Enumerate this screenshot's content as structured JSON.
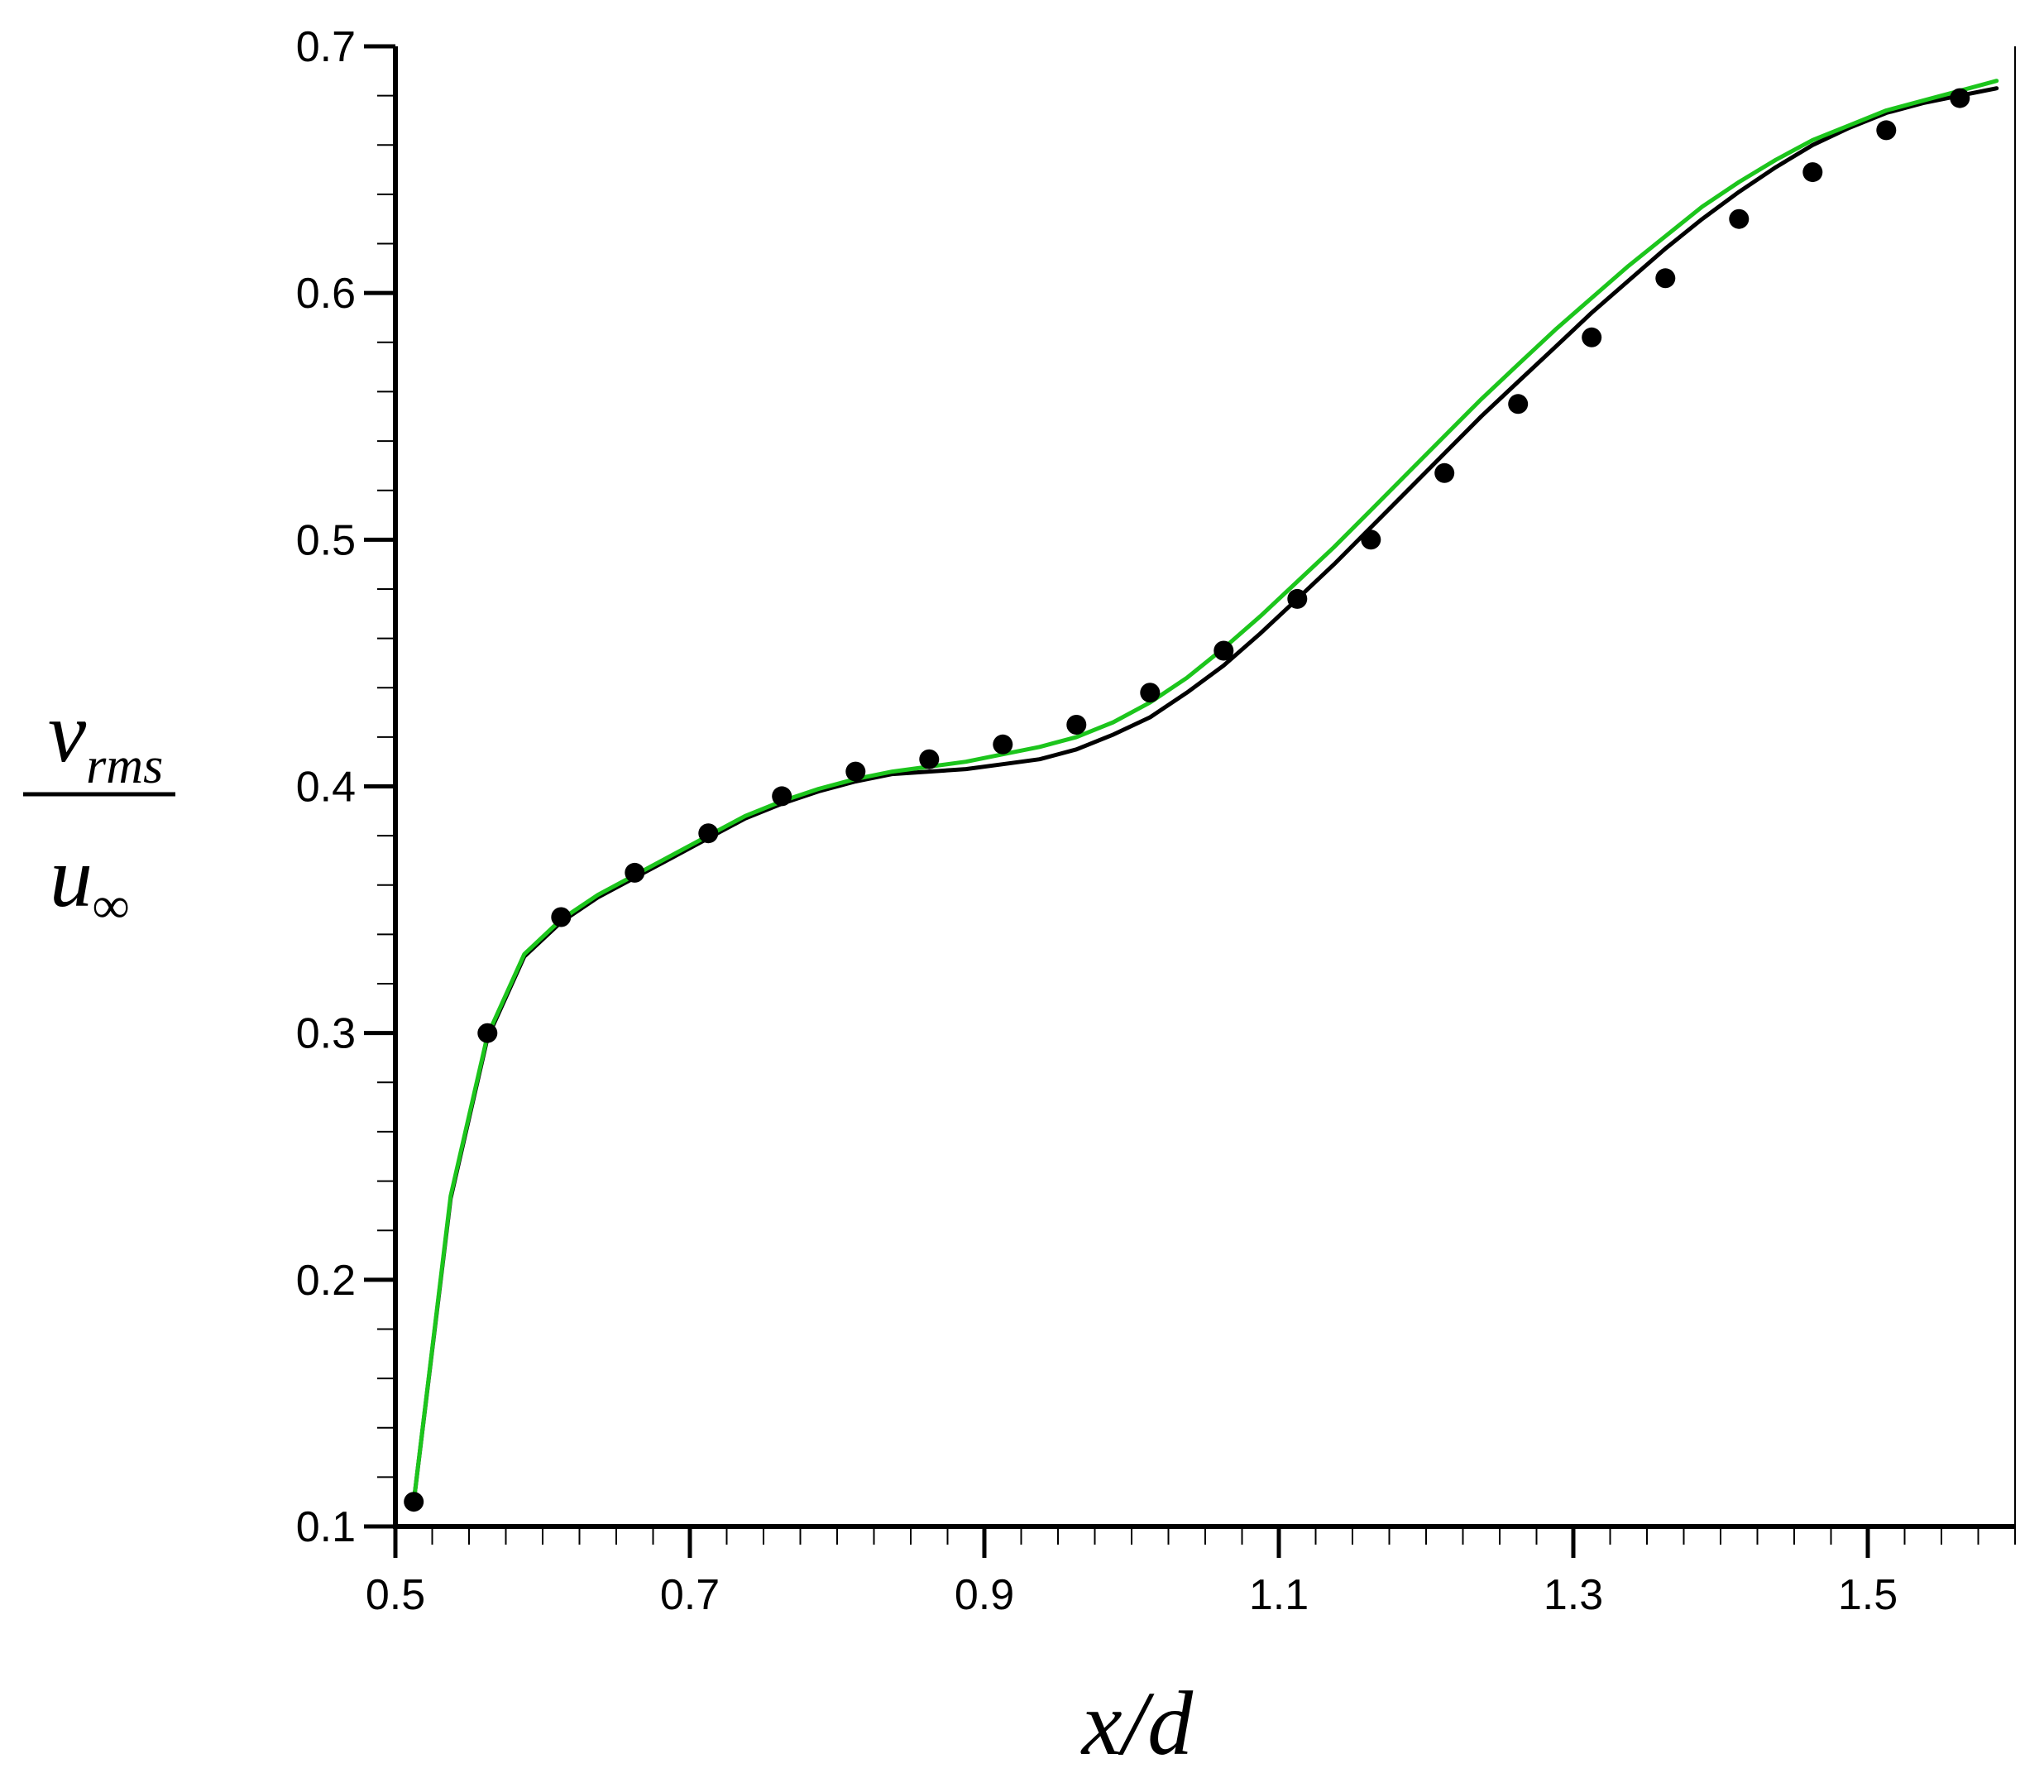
{
  "chart_data": {
    "type": "line",
    "title": "",
    "xlabel": "x/d",
    "ylabel": {
      "numerator": "v",
      "numerator_sub": "rms",
      "denominator": "u",
      "denominator_sub": "∞"
    },
    "xlim": [
      0.5,
      1.6
    ],
    "ylim": [
      0.1,
      0.7
    ],
    "xticks": [
      0.5,
      0.7,
      0.9,
      1.1,
      1.3,
      1.5
    ],
    "xtick_labels": [
      "0.5",
      "0.7",
      "0.9",
      "1.1",
      "1.3",
      "1.5"
    ],
    "yticks": [
      0.1,
      0.2,
      0.3,
      0.4,
      0.5,
      0.6,
      0.7
    ],
    "ytick_labels": [
      "0.1",
      "0.2",
      "0.3",
      "0.4",
      "0.5",
      "0.6",
      "0.7"
    ],
    "x_minor_step": 0.025,
    "y_minor_step": 0.02,
    "grid": false,
    "legend": "none",
    "series": [
      {
        "style": "line",
        "color": "#000000",
        "x": [
          0.5125,
          0.5375,
          0.5625,
          0.5875,
          0.6125,
          0.6375,
          0.6625,
          0.6875,
          0.7125,
          0.7375,
          0.7625,
          0.7875,
          0.8125,
          0.8375,
          0.8625,
          0.8875,
          0.9125,
          0.9375,
          0.9625,
          0.9875,
          1.0125,
          1.0375,
          1.0625,
          1.0875,
          1.1125,
          1.1375,
          1.1625,
          1.1875,
          1.2125,
          1.2375,
          1.2625,
          1.2875,
          1.3125,
          1.3375,
          1.3625,
          1.3875,
          1.4125,
          1.4375,
          1.4625,
          1.4875,
          1.5125,
          1.5375,
          1.5625,
          1.5875
        ],
        "y": [
          0.11,
          0.233,
          0.298,
          0.331,
          0.345,
          0.355,
          0.363,
          0.371,
          0.379,
          0.387,
          0.393,
          0.398,
          0.402,
          0.405,
          0.406,
          0.407,
          0.409,
          0.411,
          0.415,
          0.421,
          0.428,
          0.438,
          0.449,
          0.462,
          0.476,
          0.49,
          0.505,
          0.52,
          0.535,
          0.55,
          0.564,
          0.578,
          0.592,
          0.605,
          0.618,
          0.63,
          0.641,
          0.651,
          0.66,
          0.667,
          0.673,
          0.677,
          0.68,
          0.683
        ]
      },
      {
        "style": "line",
        "color": "#1cc51c",
        "x": [
          0.5125,
          0.5375,
          0.5625,
          0.5875,
          0.6125,
          0.6375,
          0.6625,
          0.6875,
          0.7125,
          0.7375,
          0.7625,
          0.7875,
          0.8125,
          0.8375,
          0.8625,
          0.8875,
          0.9125,
          0.9375,
          0.9625,
          0.9875,
          1.0125,
          1.0375,
          1.0625,
          1.0875,
          1.1125,
          1.1375,
          1.1625,
          1.1875,
          1.2125,
          1.2375,
          1.2625,
          1.2875,
          1.3125,
          1.3375,
          1.3625,
          1.3875,
          1.4125,
          1.4375,
          1.4625,
          1.4875,
          1.5125,
          1.5375,
          1.5625,
          1.5875
        ],
        "y": [
          0.11,
          0.234,
          0.299,
          0.332,
          0.346,
          0.356,
          0.364,
          0.372,
          0.38,
          0.388,
          0.394,
          0.399,
          0.403,
          0.406,
          0.408,
          0.41,
          0.413,
          0.416,
          0.42,
          0.426,
          0.434,
          0.444,
          0.456,
          0.469,
          0.483,
          0.497,
          0.512,
          0.527,
          0.542,
          0.557,
          0.571,
          0.585,
          0.598,
          0.611,
          0.623,
          0.635,
          0.645,
          0.654,
          0.662,
          0.668,
          0.674,
          0.678,
          0.682,
          0.686
        ]
      },
      {
        "style": "markers",
        "color": "#000000",
        "x": [
          0.5125,
          0.5625,
          0.6125,
          0.6625,
          0.7125,
          0.7625,
          0.8125,
          0.8625,
          0.9125,
          0.9625,
          1.0125,
          1.0625,
          1.1125,
          1.1625,
          1.2125,
          1.2625,
          1.3125,
          1.3625,
          1.4125,
          1.4625,
          1.5125,
          1.5625
        ],
        "y": [
          0.11,
          0.3,
          0.347,
          0.365,
          0.381,
          0.396,
          0.406,
          0.411,
          0.417,
          0.425,
          0.438,
          0.455,
          0.476,
          0.5,
          0.527,
          0.555,
          0.582,
          0.606,
          0.63,
          0.649,
          0.666,
          0.679
        ]
      }
    ]
  }
}
